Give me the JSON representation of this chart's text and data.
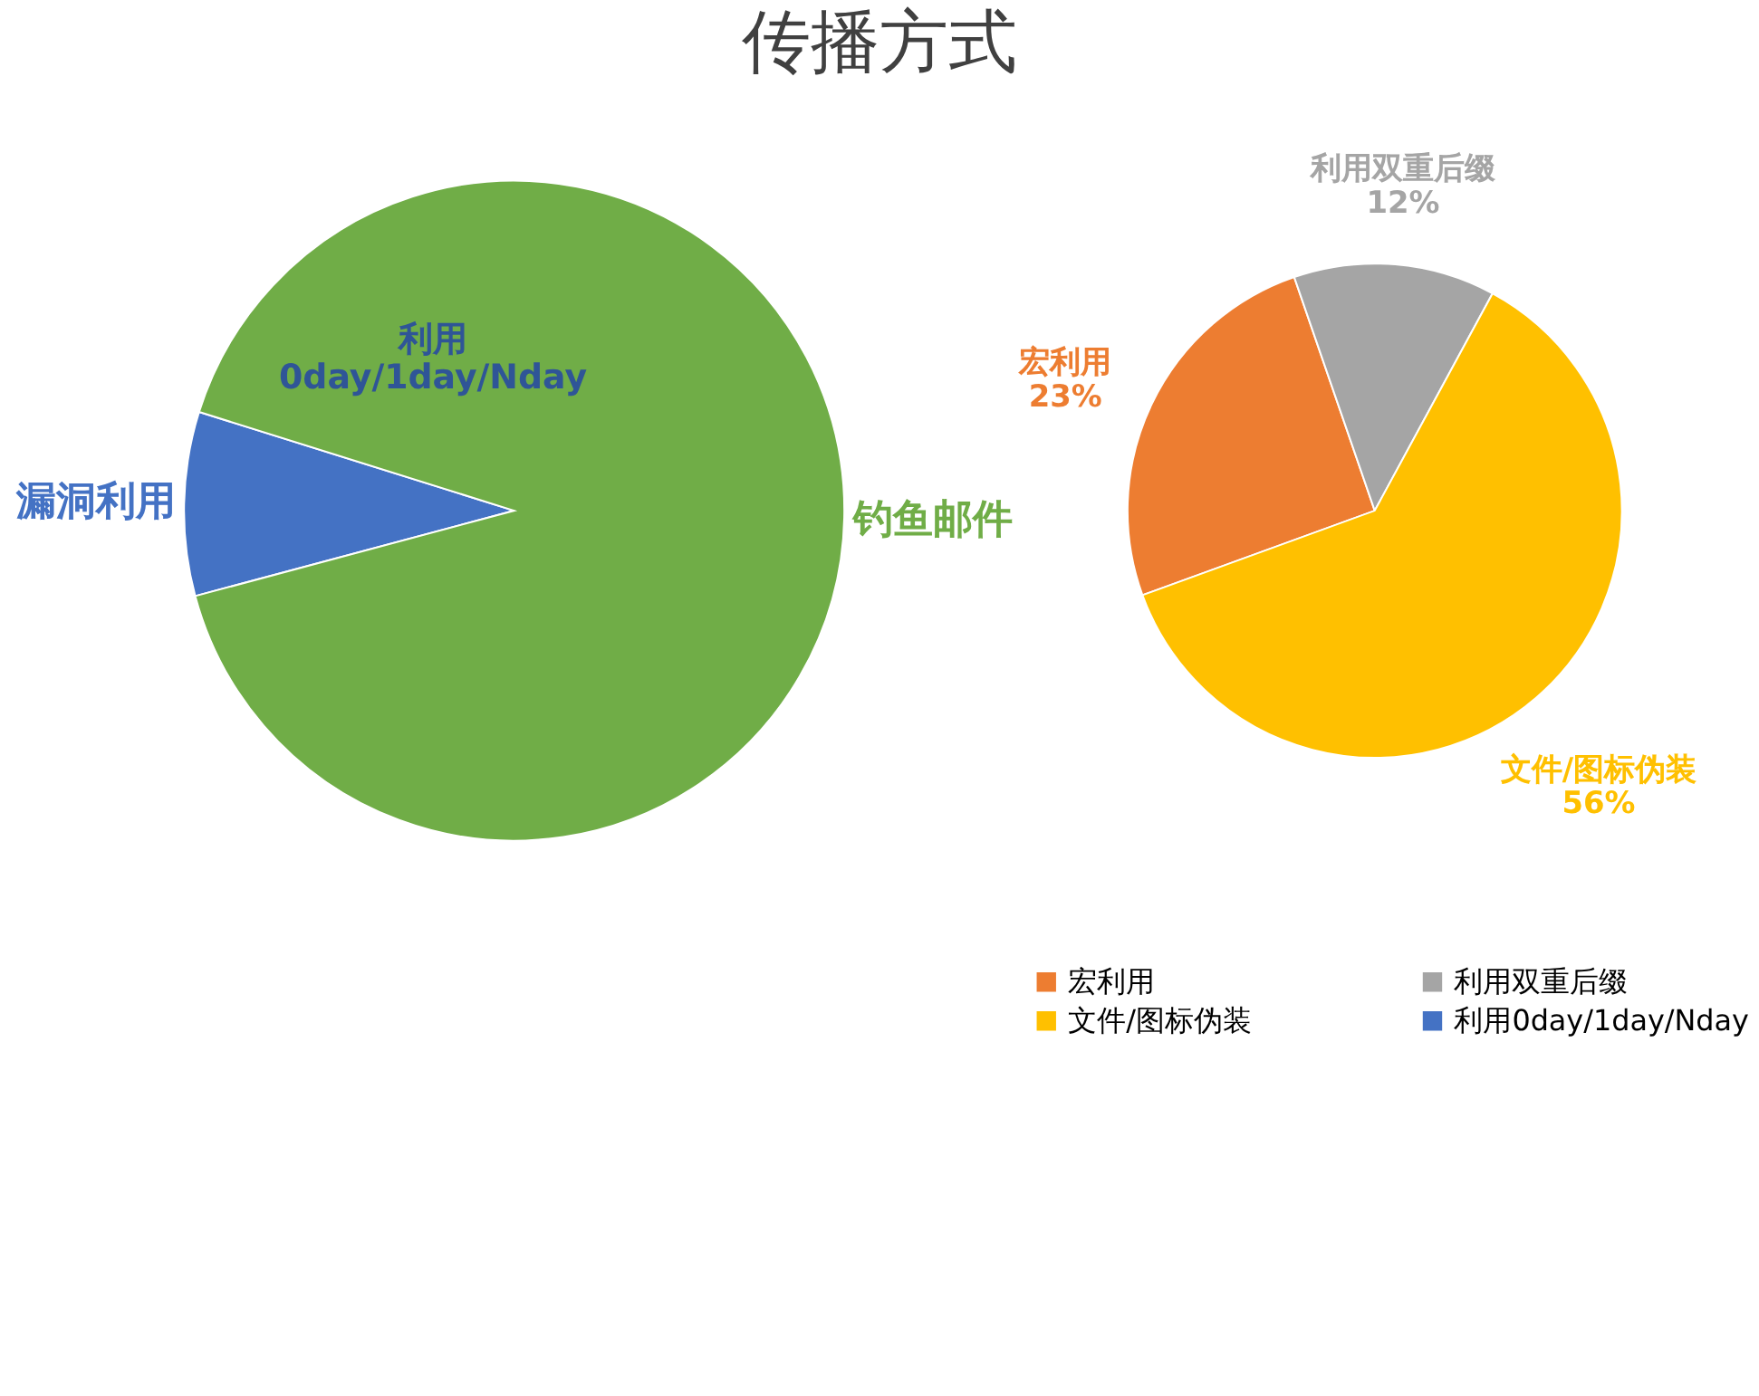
{
  "chart_data": [
    {
      "type": "pie",
      "title": "传播方式",
      "categories": [
        "漏洞利用",
        "钓鱼邮件"
      ],
      "values": [
        9,
        91
      ],
      "colors": [
        "#4472c4",
        "#70ad47"
      ],
      "annotations": [
        "利用\n0day/1day/Nday"
      ]
    },
    {
      "type": "pie",
      "categories": [
        "宏利用",
        "利用双重后缀",
        "文件/图标伪装",
        "利用0day/1day/Nday"
      ],
      "values": [
        23,
        12,
        56,
        null
      ],
      "colors": [
        "#ed7d31",
        "#a5a5a5",
        "#ffc000",
        "#4472c4"
      ],
      "value_labels": [
        "23%",
        "12%",
        "56%",
        null
      ],
      "legend": "bottom"
    }
  ]
}
